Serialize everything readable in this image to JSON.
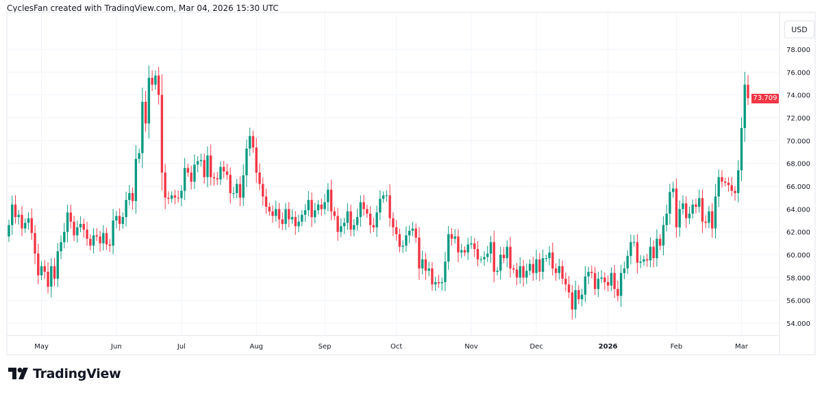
{
  "header": {
    "credit": "CyclesFan created with TradingView.com, Mar 04, 2026 15:30 UTC"
  },
  "currency_button": "USD",
  "brand": "TradingView",
  "colors": {
    "up": "#089981",
    "down": "#f23645",
    "grid": "#f0f3fa",
    "text": "#131722"
  },
  "chart_data": {
    "type": "candlestick",
    "title": "",
    "ylim": [
      53,
      79
    ],
    "y_ticks": [
      "54.000",
      "56.000",
      "58.000",
      "60.000",
      "62.000",
      "64.000",
      "66.000",
      "68.000",
      "70.000",
      "72.000",
      "74.000",
      "76.000",
      "78.000"
    ],
    "x_ticks": [
      {
        "label": "May",
        "index": 10
      },
      {
        "label": "Jun",
        "index": 33
      },
      {
        "label": "Jul",
        "index": 53
      },
      {
        "label": "Aug",
        "index": 76
      },
      {
        "label": "Sep",
        "index": 97
      },
      {
        "label": "Oct",
        "index": 119
      },
      {
        "label": "Nov",
        "index": 142
      },
      {
        "label": "Dec",
        "index": 162
      },
      {
        "label": "2026",
        "index": 184,
        "bold": true
      },
      {
        "label": "Feb",
        "index": 205
      },
      {
        "label": "Mar",
        "index": 225
      }
    ],
    "grid": true,
    "first_open": 61.6,
    "closes": [
      62.6,
      64.4,
      63.3,
      63.5,
      62.3,
      62.8,
      63.2,
      61.9,
      60.1,
      58.2,
      59.0,
      58.5,
      57.2,
      59.0,
      57.9,
      60.3,
      61.1,
      62.0,
      63.7,
      62.9,
      61.7,
      62.4,
      62.7,
      62.2,
      61.4,
      60.8,
      61.7,
      61.6,
      61.0,
      61.9,
      60.9,
      60.8,
      63.0,
      63.4,
      62.7,
      63.3,
      64.8,
      65.4,
      64.7,
      68.4,
      68.9,
      73.4,
      71.5,
      75.5,
      74.9,
      75.7,
      74.0,
      67.2,
      65.0,
      64.9,
      65.2,
      65.0,
      64.96,
      65.6,
      67.6,
      67.2,
      66.4,
      67.9,
      68.2,
      68.3,
      66.8,
      68.7,
      66.8,
      66.7,
      66.6,
      67.7,
      67.3,
      67.0,
      65.4,
      65.4,
      66.2,
      65.0,
      66.96,
      69.3,
      70.4,
      69.4,
      67.2,
      66.2,
      65.1,
      64.2,
      63.8,
      63.4,
      64.0,
      63.1,
      62.7,
      64.0,
      63.1,
      63.3,
      62.5,
      62.9,
      63.5,
      63.9,
      64.8,
      63.3,
      63.9,
      64.4,
      64.0,
      64.6,
      65.7,
      63.8,
      63.4,
      62.0,
      62.5,
      62.8,
      63.8,
      62.2,
      62.6,
      63.3,
      64.6,
      64.0,
      63.6,
      62.6,
      62.4,
      63.7,
      64.9,
      65.2,
      65.2,
      63.2,
      62.4,
      61.8,
      60.7,
      60.8,
      61.7,
      62.1,
      62.3,
      61.5,
      58.8,
      59.6,
      58.6,
      58.8,
      57.4,
      57.6,
      57.5,
      57.6,
      59.4,
      61.8,
      61.4,
      61.6,
      60.2,
      60.4,
      60.2,
      60.9,
      61.0,
      60.5,
      59.6,
      59.6,
      59.8,
      60.1,
      61.1,
      58.5,
      58.6,
      60.0,
      59.7,
      60.7,
      58.8,
      58.7,
      58.0,
      59.0,
      58.0,
      58.6,
      59.2,
      58.4,
      59.6,
      58.5,
      59.7,
      59.7,
      60.2,
      58.8,
      58.4,
      59.0,
      57.9,
      57.4,
      56.7,
      55.2,
      56.9,
      56.1,
      56.5,
      58.1,
      58.5,
      58.4,
      57.0,
      57.9,
      58.0,
      57.6,
      57.3,
      58.4,
      57.0,
      56.4,
      58.4,
      58.8,
      59.9,
      61.1,
      61.1,
      59.3,
      59.4,
      59.6,
      59.5,
      60.7,
      59.7,
      61.4,
      60.8,
      62.6,
      63.6,
      65.5,
      65.8,
      62.4,
      64.0,
      64.5,
      63.2,
      63.6,
      64.4,
      64.2,
      64.96,
      62.9,
      62.8,
      63.8,
      62.3,
      65.1,
      66.8,
      66.4,
      66.3,
      66.1,
      65.6,
      65.4,
      67.4,
      71.1,
      74.9,
      73.709
    ],
    "last_price": "73.709"
  }
}
